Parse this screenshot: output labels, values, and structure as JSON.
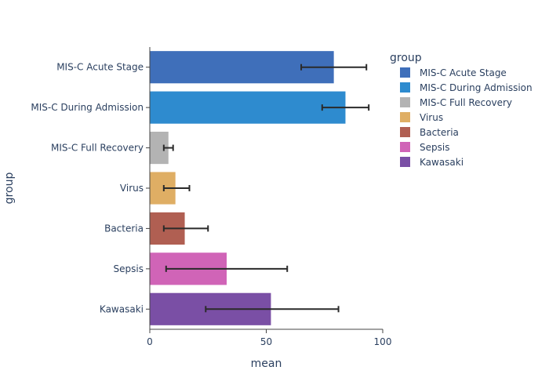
{
  "chart_data": {
    "type": "bar",
    "orientation": "horizontal",
    "categories": [
      "MIS-C Acute Stage",
      "MIS-C During Admission",
      "MIS-C Full Recovery",
      "Virus",
      "Bacteria",
      "Sepsis",
      "Kawasaki"
    ],
    "values": [
      79,
      84,
      8,
      11,
      15,
      33,
      52
    ],
    "error_low": [
      65,
      74,
      6,
      6,
      6,
      7,
      24
    ],
    "error_high": [
      93,
      94,
      10,
      17,
      25,
      59,
      81
    ],
    "colors": [
      "#3f6fba",
      "#2e8bcf",
      "#b3b3b3",
      "#dfae64",
      "#b05f52",
      "#d064b7",
      "#7a4fa5"
    ],
    "xlabel": "mean",
    "ylabel": "group",
    "xlim": [
      0,
      100
    ],
    "xticks": [
      0,
      50,
      100
    ],
    "legend": {
      "title": "group",
      "position": "top-right",
      "entries": [
        "MIS-C Acute Stage",
        "MIS-C During Admission",
        "MIS-C Full Recovery",
        "Virus",
        "Bacteria",
        "Sepsis",
        "Kawasaki"
      ]
    },
    "grid": false
  }
}
